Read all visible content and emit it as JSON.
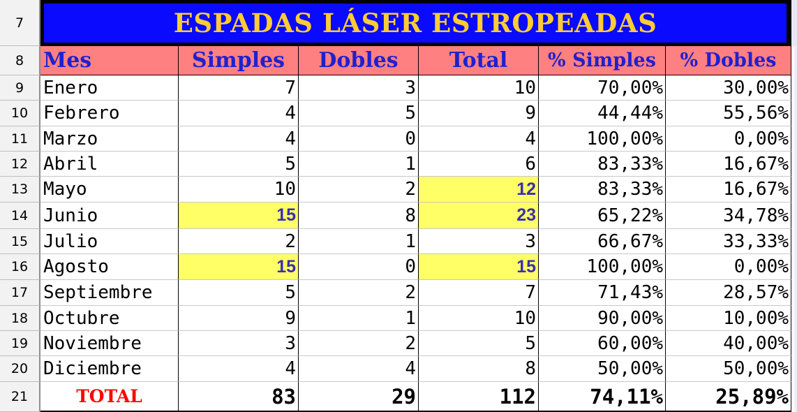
{
  "title": "ESPADAS LÁSER ESTROPEADAS",
  "row_numbers": [
    "7",
    "8",
    "9",
    "10",
    "11",
    "12",
    "13",
    "14",
    "15",
    "16",
    "17",
    "18",
    "19",
    "20",
    "21"
  ],
  "headers": [
    "Mes",
    "Simples",
    "Dobles",
    "Total",
    "% Simples",
    "% Dobles"
  ],
  "rows": [
    {
      "mes": "Enero",
      "simples": "7",
      "dobles": "3",
      "total": "10",
      "pct_simples": "70,00%",
      "pct_dobles": "30,00%",
      "hl": []
    },
    {
      "mes": "Febrero",
      "simples": "4",
      "dobles": "5",
      "total": "9",
      "pct_simples": "44,44%",
      "pct_dobles": "55,56%",
      "hl": []
    },
    {
      "mes": "Marzo",
      "simples": "4",
      "dobles": "0",
      "total": "4",
      "pct_simples": "100,00%",
      "pct_dobles": "0,00%",
      "hl": []
    },
    {
      "mes": "Abril",
      "simples": "5",
      "dobles": "1",
      "total": "6",
      "pct_simples": "83,33%",
      "pct_dobles": "16,67%",
      "hl": []
    },
    {
      "mes": "Mayo",
      "simples": "10",
      "dobles": "2",
      "total": "12",
      "pct_simples": "83,33%",
      "pct_dobles": "16,67%",
      "hl": [
        "total"
      ]
    },
    {
      "mes": "Junio",
      "simples": "15",
      "dobles": "8",
      "total": "23",
      "pct_simples": "65,22%",
      "pct_dobles": "34,78%",
      "hl": [
        "simples",
        "total"
      ]
    },
    {
      "mes": "Julio",
      "simples": "2",
      "dobles": "1",
      "total": "3",
      "pct_simples": "66,67%",
      "pct_dobles": "33,33%",
      "hl": []
    },
    {
      "mes": "Agosto",
      "simples": "15",
      "dobles": "0",
      "total": "15",
      "pct_simples": "100,00%",
      "pct_dobles": "0,00%",
      "hl": [
        "simples",
        "total"
      ]
    },
    {
      "mes": "Septiembre",
      "simples": "5",
      "dobles": "2",
      "total": "7",
      "pct_simples": "71,43%",
      "pct_dobles": "28,57%",
      "hl": []
    },
    {
      "mes": "Octubre",
      "simples": "9",
      "dobles": "1",
      "total": "10",
      "pct_simples": "90,00%",
      "pct_dobles": "10,00%",
      "hl": []
    },
    {
      "mes": "Noviembre",
      "simples": "3",
      "dobles": "2",
      "total": "5",
      "pct_simples": "60,00%",
      "pct_dobles": "40,00%",
      "hl": []
    },
    {
      "mes": "Diciembre",
      "simples": "4",
      "dobles": "4",
      "total": "8",
      "pct_simples": "50,00%",
      "pct_dobles": "50,00%",
      "hl": []
    }
  ],
  "totals": {
    "label": "TOTAL",
    "simples": "83",
    "dobles": "29",
    "total": "112",
    "pct_simples": "74,11%",
    "pct_dobles": "25,89%"
  },
  "colors": {
    "title_bg": "#0a0aff",
    "title_text": "#ffcc33",
    "header_bg": "#ff8080",
    "header_text": "#2020d0",
    "highlight_bg": "#ffff66",
    "highlight_text": "#3a2fb0",
    "total_label": "#ff0000"
  }
}
